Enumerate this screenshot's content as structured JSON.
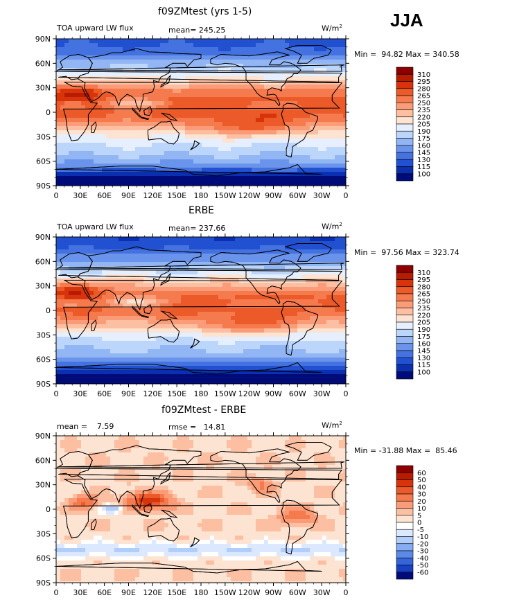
{
  "season": "JJA",
  "axis": {
    "lat_labels": [
      "90N",
      "60N",
      "30N",
      "0",
      "30S",
      "60S",
      "90S"
    ],
    "lon_labels": [
      "0",
      "30E",
      "60E",
      "90E",
      "120E",
      "150E",
      "180",
      "150W",
      "120W",
      "90W",
      "60W",
      "30W",
      "0"
    ]
  },
  "panels": [
    {
      "title": "f09ZMtest (yrs 1-5)",
      "left_label": "TOA upward LW flux",
      "mean_text": "mean= 245.25",
      "units": "W/m",
      "units_sup": "2",
      "min_label": "Min =",
      "min_value": "94.82",
      "max_label": "Max =",
      "max_value": "340.58",
      "levels": [
        "310",
        "295",
        "280",
        "265",
        "250",
        "235",
        "220",
        "205",
        "190",
        "175",
        "160",
        "145",
        "130",
        "115",
        "100"
      ],
      "palette": "abs"
    },
    {
      "title": "ERBE",
      "left_label": "TOA upward LW flux",
      "mean_text": "mean= 237.66",
      "units": "W/m",
      "units_sup": "2",
      "min_label": "Min =",
      "min_value": "97.56",
      "max_label": "Max =",
      "max_value": "323.74",
      "levels": [
        "310",
        "295",
        "280",
        "265",
        "250",
        "235",
        "220",
        "205",
        "190",
        "175",
        "160",
        "145",
        "130",
        "115",
        "100"
      ],
      "palette": "abs"
    },
    {
      "title": "f09ZMtest - ERBE",
      "left_label": "mean =    7.59",
      "mean_text": "rmse =   14.81",
      "units": "W/m",
      "units_sup": "2",
      "min_label": "Min =",
      "min_value": "-31.88",
      "max_label": "Max =",
      "max_value": "85.46",
      "levels": [
        "60",
        "50",
        "40",
        "30",
        "20",
        "10",
        "5",
        "0",
        "-5",
        "-10",
        "-20",
        "-30",
        "-40",
        "-50",
        "-60"
      ],
      "palette": "diff"
    }
  ],
  "colors": {
    "abs_palette": [
      "#8c0000",
      "#b71c00",
      "#d8340c",
      "#ec5a2a",
      "#f57a4e",
      "#f99c77",
      "#fcbfa2",
      "#fde3d2",
      "#e6efff",
      "#bcd5fb",
      "#92b6f4",
      "#6a94ec",
      "#4472e0",
      "#2150d0",
      "#0a2fb0",
      "#000b7a"
    ],
    "diff_palette": [
      "#8c0000",
      "#b71c00",
      "#d8340c",
      "#ec5a2a",
      "#f57a4e",
      "#f99c77",
      "#fcbfa2",
      "#fde3d2",
      "#ffffff",
      "#dbe8ff",
      "#b1cdfb",
      "#86adf2",
      "#5c8ae8",
      "#3665da",
      "#1641c4",
      "#000b7a"
    ]
  }
}
